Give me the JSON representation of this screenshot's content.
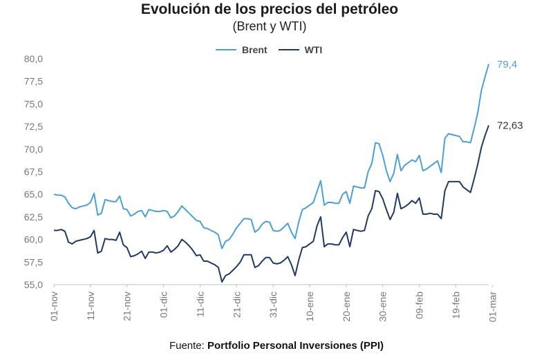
{
  "chart_data": {
    "type": "line",
    "title": "Evolución de los precios del petróleo",
    "subtitle": "(Brent y WTI)",
    "source_prefix": "Fuente:",
    "source_name": "Portfolio Personal Inversiones (PPI)",
    "xlabel": "",
    "ylabel": "",
    "ylim": [
      55.0,
      80.0
    ],
    "yticks": [
      55.0,
      57.5,
      60.0,
      62.5,
      65.0,
      67.5,
      70.0,
      72.5,
      75.0,
      77.5,
      80.0
    ],
    "ytick_labels": [
      "55,0",
      "57,5",
      "60,0",
      "62,5",
      "65,0",
      "67,5",
      "70,0",
      "72,5",
      "75,0",
      "77,5",
      "80,0"
    ],
    "xtick_labels": [
      "01-nov",
      "11-nov",
      "21-nov",
      "01-dic",
      "11-dic",
      "21-dic",
      "31-dic",
      "10-ene",
      "20-ene",
      "30-ene",
      "09-feb",
      "19-feb",
      "01-mar"
    ],
    "x_range_days": [
      0,
      120
    ],
    "series": [
      {
        "name": "Brent",
        "color": "#4a9fd8",
        "end_label": "79,4",
        "points": [
          [
            0,
            65.0
          ],
          [
            1,
            64.9
          ],
          [
            2,
            64.9
          ],
          [
            3,
            64.7
          ],
          [
            4,
            64.0
          ],
          [
            5,
            63.5
          ],
          [
            6,
            63.4
          ],
          [
            7,
            63.6
          ],
          [
            8,
            63.7
          ],
          [
            9,
            63.8
          ],
          [
            10,
            64.1
          ],
          [
            11,
            65.1
          ],
          [
            12,
            62.7
          ],
          [
            13,
            62.9
          ],
          [
            14,
            64.4
          ],
          [
            15,
            64.3
          ],
          [
            16,
            64.2
          ],
          [
            17,
            64.2
          ],
          [
            18,
            64.8
          ],
          [
            19,
            63.4
          ],
          [
            20,
            63.3
          ],
          [
            21,
            62.6
          ],
          [
            22,
            62.8
          ],
          [
            23,
            63.1
          ],
          [
            24,
            63.2
          ],
          [
            25,
            62.5
          ],
          [
            26,
            63.3
          ],
          [
            27,
            63.2
          ],
          [
            28,
            63.1
          ],
          [
            29,
            63.1
          ],
          [
            30,
            63.2
          ],
          [
            31,
            63.1
          ],
          [
            32,
            62.4
          ],
          [
            33,
            62.6
          ],
          [
            34,
            63.1
          ],
          [
            35,
            63.7
          ],
          [
            36,
            63.3
          ],
          [
            37,
            62.9
          ],
          [
            38,
            62.5
          ],
          [
            39,
            62.1
          ],
          [
            40,
            62.0
          ],
          [
            41,
            61.3
          ],
          [
            42,
            61.2
          ],
          [
            43,
            61.0
          ],
          [
            44,
            60.8
          ],
          [
            45,
            60.5
          ],
          [
            46,
            59.0
          ],
          [
            47,
            59.8
          ],
          [
            48,
            60.0
          ],
          [
            49,
            60.6
          ],
          [
            50,
            61.3
          ],
          [
            51,
            61.8
          ],
          [
            52,
            62.3
          ],
          [
            53,
            62.3
          ],
          [
            54,
            62.2
          ],
          [
            55,
            60.8
          ],
          [
            56,
            61.1
          ],
          [
            57,
            61.7
          ],
          [
            58,
            62.0
          ],
          [
            59,
            61.9
          ],
          [
            60,
            61.0
          ],
          [
            61,
            60.9
          ],
          [
            62,
            61.0
          ],
          [
            63,
            61.4
          ],
          [
            64,
            61.8
          ],
          [
            65,
            60.8
          ],
          [
            66,
            60.1
          ],
          [
            67,
            61.9
          ],
          [
            68,
            63.3
          ],
          [
            69,
            63.5
          ],
          [
            70,
            63.8
          ],
          [
            71,
            64.1
          ],
          [
            72,
            65.3
          ],
          [
            73,
            66.5
          ],
          [
            74,
            63.8
          ],
          [
            75,
            64.1
          ],
          [
            76,
            64.1
          ],
          [
            77,
            64.0
          ],
          [
            78,
            64.0
          ],
          [
            79,
            65.0
          ],
          [
            80,
            65.3
          ],
          [
            81,
            64.0
          ],
          [
            82,
            65.9
          ],
          [
            83,
            65.8
          ],
          [
            84,
            65.7
          ],
          [
            85,
            65.7
          ],
          [
            86,
            67.5
          ],
          [
            87,
            68.4
          ],
          [
            88,
            70.7
          ],
          [
            89,
            70.6
          ],
          [
            90,
            69.3
          ],
          [
            91,
            67.6
          ],
          [
            92,
            66.4
          ],
          [
            93,
            67.3
          ],
          [
            94,
            69.4
          ],
          [
            95,
            67.6
          ],
          [
            96,
            68.2
          ],
          [
            97,
            68.5
          ],
          [
            98,
            68.8
          ],
          [
            99,
            68.6
          ],
          [
            100,
            69.3
          ],
          [
            101,
            67.6
          ],
          [
            102,
            67.8
          ],
          [
            103,
            68.1
          ],
          [
            104,
            68.4
          ],
          [
            105,
            68.7
          ],
          [
            106,
            67.4
          ],
          [
            107,
            71.2
          ],
          [
            108,
            71.7
          ],
          [
            109,
            71.6
          ],
          [
            110,
            71.5
          ],
          [
            111,
            71.4
          ],
          [
            112,
            70.8
          ],
          [
            113,
            70.8
          ],
          [
            114,
            70.7
          ],
          [
            115,
            72.3
          ],
          [
            116,
            74.0
          ],
          [
            117,
            76.5
          ],
          [
            118,
            78.0
          ],
          [
            119,
            79.4
          ]
        ]
      },
      {
        "name": "WTI",
        "color": "#1f3864",
        "end_label": "72,63",
        "points": [
          [
            0,
            61.0
          ],
          [
            1,
            61.0
          ],
          [
            2,
            61.1
          ],
          [
            3,
            60.9
          ],
          [
            4,
            59.7
          ],
          [
            5,
            59.5
          ],
          [
            6,
            59.8
          ],
          [
            7,
            59.9
          ],
          [
            8,
            60.0
          ],
          [
            9,
            60.1
          ],
          [
            10,
            60.3
          ],
          [
            11,
            61.0
          ],
          [
            12,
            58.5
          ],
          [
            13,
            58.7
          ],
          [
            14,
            60.1
          ],
          [
            15,
            60.0
          ],
          [
            16,
            60.0
          ],
          [
            17,
            59.9
          ],
          [
            18,
            60.8
          ],
          [
            19,
            59.4
          ],
          [
            20,
            59.1
          ],
          [
            21,
            58.1
          ],
          [
            22,
            58.2
          ],
          [
            23,
            58.4
          ],
          [
            24,
            58.7
          ],
          [
            25,
            57.9
          ],
          [
            26,
            58.6
          ],
          [
            27,
            58.6
          ],
          [
            28,
            58.5
          ],
          [
            29,
            58.6
          ],
          [
            30,
            58.8
          ],
          [
            31,
            59.3
          ],
          [
            32,
            58.6
          ],
          [
            33,
            58.9
          ],
          [
            34,
            59.3
          ],
          [
            35,
            60.0
          ],
          [
            36,
            59.7
          ],
          [
            37,
            59.3
          ],
          [
            38,
            58.8
          ],
          [
            39,
            58.2
          ],
          [
            40,
            58.3
          ],
          [
            41,
            57.6
          ],
          [
            42,
            57.6
          ],
          [
            43,
            57.4
          ],
          [
            44,
            57.2
          ],
          [
            45,
            56.9
          ],
          [
            46,
            55.3
          ],
          [
            47,
            56.0
          ],
          [
            48,
            56.2
          ],
          [
            49,
            56.6
          ],
          [
            50,
            57.0
          ],
          [
            51,
            57.5
          ],
          [
            52,
            58.3
          ],
          [
            53,
            58.3
          ],
          [
            54,
            58.3
          ],
          [
            55,
            56.9
          ],
          [
            56,
            57.1
          ],
          [
            57,
            57.6
          ],
          [
            58,
            58.0
          ],
          [
            59,
            58.0
          ],
          [
            60,
            57.4
          ],
          [
            61,
            57.3
          ],
          [
            62,
            57.4
          ],
          [
            63,
            57.7
          ],
          [
            64,
            58.1
          ],
          [
            65,
            57.2
          ],
          [
            66,
            56.0
          ],
          [
            67,
            57.7
          ],
          [
            68,
            59.1
          ],
          [
            69,
            59.2
          ],
          [
            70,
            59.5
          ],
          [
            71,
            59.8
          ],
          [
            72,
            61.5
          ],
          [
            73,
            62.5
          ],
          [
            74,
            59.2
          ],
          [
            75,
            59.5
          ],
          [
            76,
            59.5
          ],
          [
            77,
            59.4
          ],
          [
            78,
            59.4
          ],
          [
            79,
            60.2
          ],
          [
            80,
            60.8
          ],
          [
            81,
            59.2
          ],
          [
            82,
            61.1
          ],
          [
            83,
            61.0
          ],
          [
            84,
            60.9
          ],
          [
            85,
            61.0
          ],
          [
            86,
            62.6
          ],
          [
            87,
            63.4
          ],
          [
            88,
            65.4
          ],
          [
            89,
            65.3
          ],
          [
            90,
            64.5
          ],
          [
            91,
            63.3
          ],
          [
            92,
            62.2
          ],
          [
            93,
            63.0
          ],
          [
            94,
            65.1
          ],
          [
            95,
            63.4
          ],
          [
            96,
            63.6
          ],
          [
            97,
            63.9
          ],
          [
            98,
            64.3
          ],
          [
            99,
            64.0
          ],
          [
            100,
            64.6
          ],
          [
            101,
            62.8
          ],
          [
            102,
            62.8
          ],
          [
            103,
            62.9
          ],
          [
            104,
            62.8
          ],
          [
            105,
            62.8
          ],
          [
            106,
            62.3
          ],
          [
            107,
            65.4
          ],
          [
            108,
            66.4
          ],
          [
            109,
            66.4
          ],
          [
            110,
            66.4
          ],
          [
            111,
            66.4
          ],
          [
            112,
            65.8
          ],
          [
            113,
            65.5
          ],
          [
            114,
            65.2
          ],
          [
            115,
            66.7
          ],
          [
            116,
            68.3
          ],
          [
            117,
            70.2
          ],
          [
            118,
            71.5
          ],
          [
            119,
            72.63
          ]
        ]
      }
    ]
  }
}
